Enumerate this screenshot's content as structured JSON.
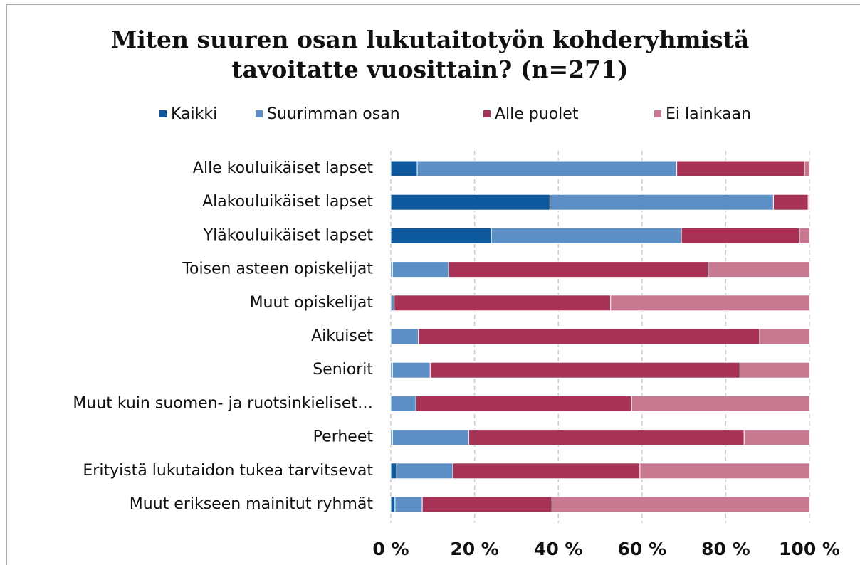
{
  "chart_data": {
    "type": "stacked_bar_horizontal",
    "title": "Miten suuren osan lukutaitotyön kohderyhmistä tavoitatte vuosittain? (n=271)",
    "categories": [
      "Alle kouluikäiset lapset",
      "Alakouluikäiset lapset",
      "Yläkouluikäiset lapset",
      "Toisen asteen opiskelijat",
      "Muut opiskelijat",
      "Aikuiset",
      "Seniorit",
      "Muut kuin suomen- ja ruotsinkieliset…",
      "Perheet",
      "Erityistä lukutaidon tukea tarvitsevat",
      "Muut erikseen mainitut ryhmät"
    ],
    "series": [
      {
        "name": "Kaikki",
        "color": "#0e589e",
        "values": [
          6.3,
          38,
          24,
          0.4,
          0,
          0,
          0.4,
          0,
          0.4,
          1.4,
          1
        ]
      },
      {
        "name": "Suurimman osan",
        "color": "#5b8fc6",
        "values": [
          62,
          53.4,
          45.4,
          13.4,
          0.8,
          6.6,
          9,
          6,
          18.2,
          13.4,
          6.5
        ]
      },
      {
        "name": "Alle puolet",
        "color": "#a83256",
        "values": [
          30.5,
          8.3,
          28.2,
          62,
          51.7,
          81.5,
          74,
          51.5,
          65.8,
          44.7,
          31
        ]
      },
      {
        "name": "Ei lainkaan",
        "color": "#c97892",
        "values": [
          1.2,
          0.3,
          2.4,
          24.2,
          47.5,
          11.9,
          16.6,
          42.5,
          15.6,
          40.5,
          61.5
        ]
      }
    ],
    "xlim": [
      0,
      100
    ],
    "xticks": [
      {
        "value": 0,
        "label": "0 %"
      },
      {
        "value": 20,
        "label": "20 %"
      },
      {
        "value": 40,
        "label": "40 %"
      },
      {
        "value": 60,
        "label": "60 %"
      },
      {
        "value": 80,
        "label": "80 %"
      },
      {
        "value": 100,
        "label": "100 %"
      }
    ],
    "grid": true,
    "legend": "top"
  }
}
